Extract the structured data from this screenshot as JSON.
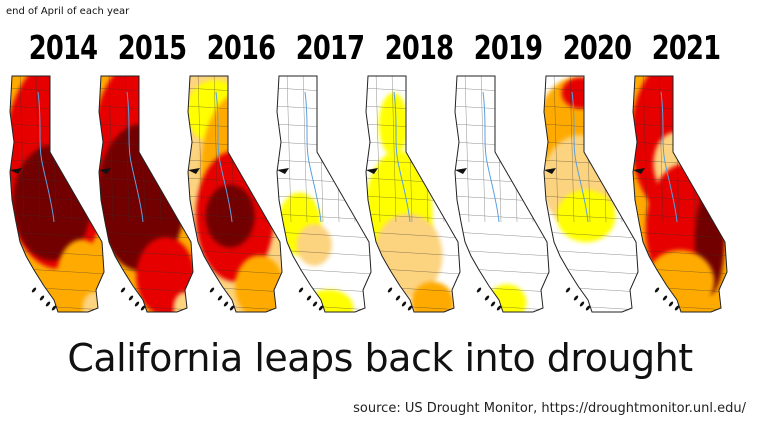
{
  "note": "end of April of each year",
  "title": "California leaps back into drought",
  "source": "source: US Drought Monitor, https://droughtmonitor.unl.edu/",
  "palette": {
    "none": "#ffffff",
    "D0": "#ffff00",
    "D1": "#fcd37f",
    "D2": "#ffaa00",
    "D3": "#e60000",
    "D4": "#730000",
    "boundary": "#222222",
    "water": "#5aa0e0"
  },
  "maps": [
    {
      "year": "2014",
      "base": "D2",
      "blobs": [
        [
          "D3",
          0.5,
          0.35,
          0.55,
          0.4
        ],
        [
          "D4",
          0.45,
          0.5,
          0.4,
          0.22
        ],
        [
          "D2",
          0.75,
          0.78,
          0.25,
          0.14
        ],
        [
          "D1",
          0.88,
          0.9,
          0.12,
          0.06
        ]
      ]
    },
    {
      "year": "2015",
      "base": "D2",
      "blobs": [
        [
          "D3",
          0.45,
          0.3,
          0.5,
          0.35
        ],
        [
          "D4",
          0.45,
          0.48,
          0.45,
          0.28
        ],
        [
          "D3",
          0.7,
          0.78,
          0.3,
          0.15
        ],
        [
          "D1",
          0.9,
          0.9,
          0.12,
          0.06
        ]
      ]
    },
    {
      "year": "2016",
      "base": "D1",
      "blobs": [
        [
          "D0",
          0.3,
          0.15,
          0.3,
          0.12
        ],
        [
          "D2",
          0.55,
          0.38,
          0.4,
          0.3
        ],
        [
          "D3",
          0.5,
          0.55,
          0.4,
          0.25
        ],
        [
          "D4",
          0.45,
          0.55,
          0.25,
          0.12
        ],
        [
          "D2",
          0.75,
          0.82,
          0.25,
          0.12
        ]
      ]
    },
    {
      "year": "2017",
      "base": "none",
      "blobs": [
        [
          "D0",
          0.25,
          0.58,
          0.22,
          0.12
        ],
        [
          "D1",
          0.4,
          0.66,
          0.18,
          0.08
        ],
        [
          "D0",
          0.55,
          0.9,
          0.25,
          0.07
        ]
      ]
    },
    {
      "year": "2018",
      "base": "none",
      "blobs": [
        [
          "D0",
          0.35,
          0.55,
          0.35,
          0.25
        ],
        [
          "D1",
          0.45,
          0.7,
          0.35,
          0.16
        ],
        [
          "D2",
          0.7,
          0.88,
          0.22,
          0.08
        ],
        [
          "D0",
          0.3,
          0.2,
          0.15,
          0.12
        ]
      ]
    },
    {
      "year": "2019",
      "base": "none",
      "blobs": [
        [
          "D0",
          0.55,
          0.88,
          0.2,
          0.07
        ]
      ]
    },
    {
      "year": "2020",
      "base": "none",
      "blobs": [
        [
          "D2",
          0.35,
          0.22,
          0.4,
          0.2
        ],
        [
          "D1",
          0.4,
          0.42,
          0.4,
          0.18
        ],
        [
          "D0",
          0.45,
          0.55,
          0.3,
          0.1
        ],
        [
          "D3",
          0.4,
          0.08,
          0.2,
          0.06
        ]
      ]
    },
    {
      "year": "2021",
      "base": "D2",
      "blobs": [
        [
          "D3",
          0.45,
          0.25,
          0.45,
          0.3
        ],
        [
          "D1",
          0.45,
          0.35,
          0.22,
          0.12
        ],
        [
          "D3",
          0.55,
          0.6,
          0.4,
          0.25
        ],
        [
          "D4",
          0.8,
          0.65,
          0.15,
          0.2
        ],
        [
          "D2",
          0.5,
          0.8,
          0.35,
          0.12
        ]
      ]
    }
  ]
}
